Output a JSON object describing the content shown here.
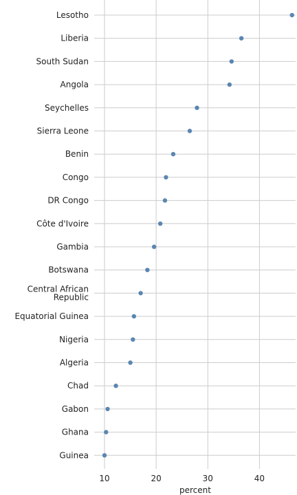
{
  "chart_data": {
    "type": "scatter",
    "title": "",
    "xlabel": "percent",
    "ylabel": "",
    "xlim": [
      8,
      47
    ],
    "xticks": [
      10,
      20,
      30,
      40
    ],
    "grid": true,
    "point_color": "#5b86b0",
    "grid_color": "#cccccc",
    "categories": [
      "Lesotho",
      "Liberia",
      "South Sudan",
      "Angola",
      "Seychelles",
      "Sierra Leone",
      "Benin",
      "Congo",
      "DR Congo",
      "Côte d'Ivoire",
      "Gambia",
      "Botswana",
      "Central African Republic",
      "Equatorial Guinea",
      "Nigeria",
      "Algeria",
      "Chad",
      "Gabon",
      "Ghana",
      "Guinea"
    ],
    "category_lines": [
      [
        "Lesotho"
      ],
      [
        "Liberia"
      ],
      [
        "South Sudan"
      ],
      [
        "Angola"
      ],
      [
        "Seychelles"
      ],
      [
        "Sierra Leone"
      ],
      [
        "Benin"
      ],
      [
        "Congo"
      ],
      [
        "DR Congo"
      ],
      [
        "Côte d'Ivoire"
      ],
      [
        "Gambia"
      ],
      [
        "Botswana"
      ],
      [
        "Central African",
        "Republic"
      ],
      [
        "Equatorial Guinea"
      ],
      [
        "Nigeria"
      ],
      [
        "Algeria"
      ],
      [
        "Chad"
      ],
      [
        "Gabon"
      ],
      [
        "Ghana"
      ],
      [
        "Guinea"
      ]
    ],
    "values": [
      46.3,
      36.5,
      34.6,
      34.2,
      27.9,
      26.5,
      23.3,
      21.9,
      21.7,
      20.8,
      19.6,
      18.3,
      17.0,
      15.7,
      15.5,
      15.0,
      12.2,
      10.6,
      10.3,
      10.0
    ]
  }
}
